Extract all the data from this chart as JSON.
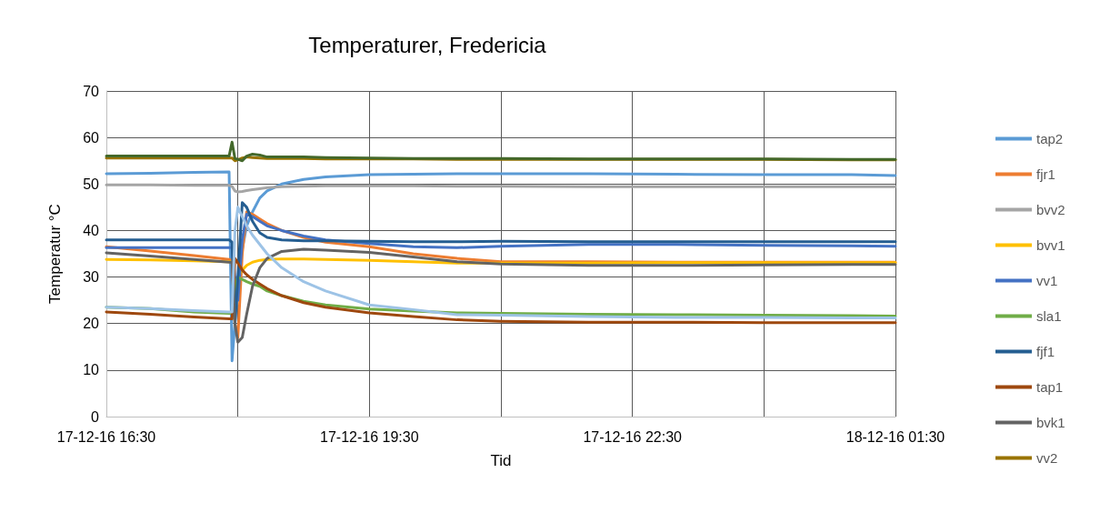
{
  "chart_data": {
    "type": "line",
    "title": "Temperaturer, Fredericia",
    "xlabel": "Tid",
    "ylabel": "Temperatur °C",
    "x": [
      "--12-17T16:30",
      "--12-17T17:00",
      "--12-17T17:30",
      "--12-17T17:54",
      "--12-17T17:56",
      "--12-17T17:58",
      "--12-17T18:00",
      "--12-17T18:03",
      "--12-17T18:06",
      "--12-17T18:10",
      "--12-17T18:15",
      "--12-17T18:20",
      "--12-17T18:30",
      "--12-17T18:45",
      "--12-17T19:00",
      "--12-17T19:30",
      "--12-17T20:00",
      "--12-17T20:30",
      "--12-17T21:00",
      "--12-17T22:00",
      "--12-17T23:00",
      "--12-18T00:00",
      "--12-18T01:00",
      "--12-18T01:30"
    ],
    "series": [
      {
        "name": "tap2",
        "color": "#5b9bd5",
        "values": [
          52.2,
          52.3,
          52.5,
          52.6,
          12,
          20,
          28,
          36,
          41,
          44,
          47,
          48.5,
          50,
          51,
          51.5,
          52,
          52.1,
          52.2,
          52.2,
          52.2,
          52.1,
          52,
          52,
          51.8
        ]
      },
      {
        "name": "fjr1",
        "color": "#ed7d31",
        "values": [
          36.5,
          35.6,
          34.6,
          33.8,
          33.5,
          20,
          17,
          35,
          44,
          43.5,
          42.5,
          41.5,
          40,
          38.5,
          37.5,
          36.5,
          35,
          34,
          33.3,
          33.3,
          33.2,
          33.2,
          33.2,
          33.2
        ]
      },
      {
        "name": "bvv2",
        "color": "#a5a5a5",
        "values": [
          49.8,
          49.8,
          49.7,
          49.7,
          49.5,
          48.5,
          48.3,
          48.4,
          48.6,
          48.8,
          49,
          49.2,
          49.4,
          49.5,
          49.6,
          49.6,
          49.6,
          49.5,
          49.5,
          49.4,
          49.4,
          49.4,
          49.4,
          49.4
        ]
      },
      {
        "name": "bvv1",
        "color": "#ffc000",
        "values": [
          33.8,
          33.7,
          33.5,
          33.3,
          33.3,
          28,
          30,
          31.5,
          32.5,
          33.2,
          33.6,
          33.8,
          33.9,
          33.9,
          33.8,
          33.6,
          33.3,
          33,
          33,
          33,
          33.1,
          33.1,
          33.1,
          33.1
        ]
      },
      {
        "name": "vv1",
        "color": "#4472c4",
        "values": [
          36.3,
          36.3,
          36.3,
          36.3,
          36.3,
          30,
          25,
          38,
          43.5,
          43,
          42,
          41,
          40,
          38.8,
          38,
          37.2,
          36.5,
          36.3,
          36.6,
          37,
          37,
          36.8,
          36.7,
          36.6
        ]
      },
      {
        "name": "sla1",
        "color": "#70ad47",
        "values": [
          23.5,
          23.2,
          22.5,
          22.2,
          22.2,
          28,
          30,
          29.5,
          29,
          28.5,
          28,
          27,
          26,
          24.8,
          24,
          23.1,
          22.7,
          22.3,
          22.2,
          22,
          21.9,
          21.8,
          21.7,
          21.6
        ]
      },
      {
        "name": "fjf1",
        "color": "#255e91",
        "values": [
          38,
          38,
          38,
          38,
          37.5,
          20,
          30,
          46,
          45,
          42,
          39.5,
          38.5,
          38,
          37.8,
          37.8,
          37.7,
          37.6,
          37.6,
          37.7,
          37.6,
          37.6,
          37.6,
          37.6,
          37.6
        ]
      },
      {
        "name": "tap1",
        "color": "#9e480e",
        "values": [
          22.5,
          22,
          21.4,
          21,
          21,
          34,
          33,
          31.5,
          30.5,
          29.5,
          28.5,
          27.5,
          26,
          24.5,
          23.5,
          22.3,
          21.5,
          20.8,
          20.5,
          20.3,
          20.3,
          20.2,
          20.2,
          20.2
        ]
      },
      {
        "name": "bvk1",
        "color": "#636363",
        "values": [
          35.2,
          34.5,
          33.8,
          33.2,
          33.2,
          20,
          16,
          17,
          22,
          28,
          32,
          34,
          35.5,
          36,
          35.8,
          35.3,
          34.3,
          33.3,
          32.8,
          32.5,
          32.5,
          32.6,
          32.7,
          32.7
        ]
      },
      {
        "name": "vv2",
        "color": "#997300",
        "values": [
          55.6,
          55.6,
          55.6,
          55.6,
          55.6,
          55,
          55.2,
          55.6,
          55.8,
          55.7,
          55.6,
          55.5,
          55.5,
          55.5,
          55.4,
          55.4,
          55.4,
          55.3,
          55.3,
          55.3,
          55.3,
          55.3,
          55.2,
          55.2
        ]
      },
      {
        "color": "#9dc3e6",
        "values": [
          23.5,
          23.2,
          22.8,
          22.5,
          22.5,
          40,
          45,
          43,
          41,
          39,
          37,
          35,
          32,
          29,
          27,
          24,
          23,
          21.9,
          21.8,
          21.5,
          21.3,
          21.3,
          21.2,
          21.2
        ]
      },
      {
        "color": "#43682b",
        "values": [
          56,
          56,
          56,
          56,
          59,
          55.5,
          55.3,
          55,
          56,
          56.4,
          56.2,
          55.8,
          55.8,
          55.8,
          55.7,
          55.6,
          55.5,
          55.5,
          55.5,
          55.4,
          55.4,
          55.4,
          55.3,
          55.3
        ]
      }
    ],
    "xlim": [
      "--12-17T16:30",
      "--12-18T01:30"
    ],
    "xticks": [
      {
        "value": "--12-17T16:30",
        "label": "17-12-16 16:30"
      },
      {
        "value": "--12-17T18:00",
        "label": null
      },
      {
        "value": "--12-17T19:30",
        "label": "17-12-16 19:30"
      },
      {
        "value": "--12-17T21:00",
        "label": null
      },
      {
        "value": "--12-17T22:30",
        "label": "17-12-16 22:30"
      },
      {
        "value": "--12-18T00:00",
        "label": null
      },
      {
        "value": "--12-18T01:30",
        "label": "18-12-16 01:30"
      }
    ],
    "ylim": [
      0,
      70
    ],
    "yticks": [
      0,
      10,
      20,
      30,
      40,
      50,
      60,
      70
    ],
    "grid": true,
    "legend": "right",
    "marker": "none",
    "line_style": "solid"
  }
}
